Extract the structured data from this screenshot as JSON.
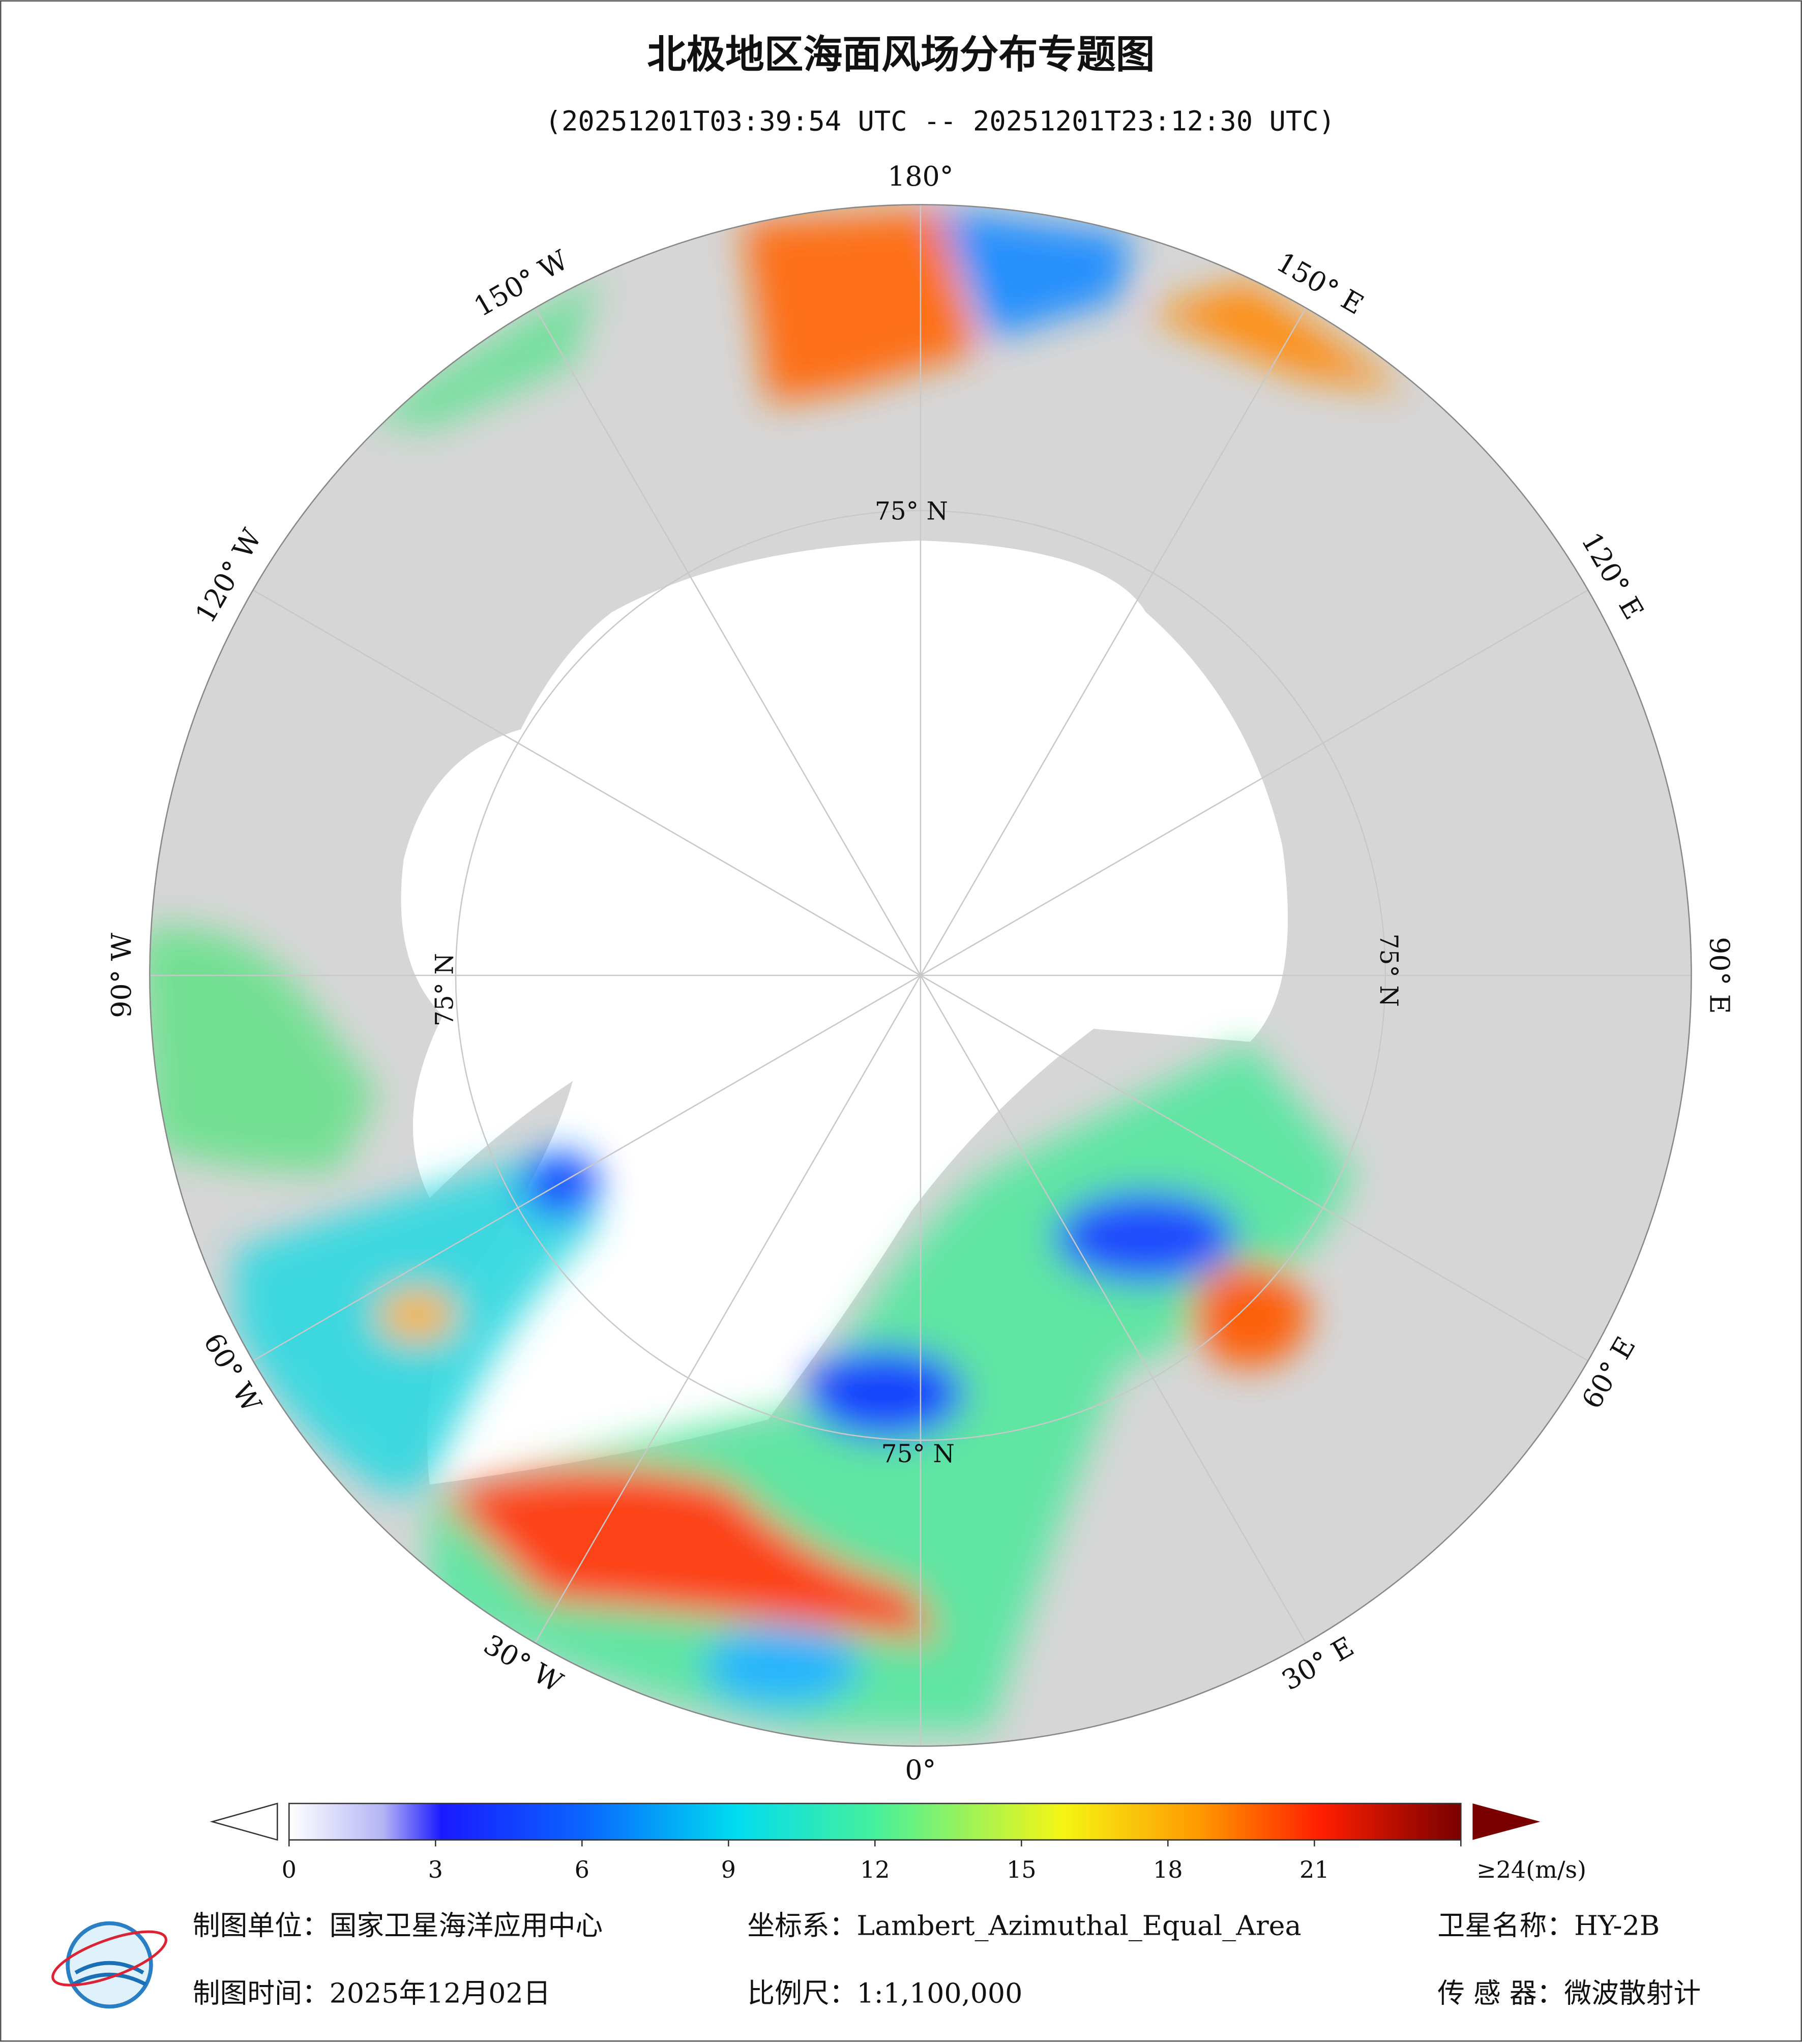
{
  "header": {
    "title": "北极地区海面风场分布专题图",
    "time_range": "(20251201T03:39:54 UTC -- 20251201T23:12:30 UTC)"
  },
  "map": {
    "longitude_labels": [
      "180°",
      "150° E",
      "120° E",
      "90° E",
      "60° E",
      "30° E",
      "0°",
      "30° W",
      "60° W",
      "90° W",
      "120° W",
      "150° W"
    ],
    "latitude_labels": [
      "75° N",
      "75° N",
      "75° N",
      "75° N"
    ]
  },
  "colorbar": {
    "range": [
      0,
      24
    ],
    "ticks": [
      0,
      3,
      6,
      9,
      12,
      15,
      18,
      21,
      {
        "value": 24,
        "label": "≥24(m/s)"
      }
    ]
  },
  "footer": {
    "unit": "制图单位：国家卫星海洋应用中心",
    "crs": "坐标系：Lambert_Azimuthal_Equal_Area",
    "satellite": "卫星名称：HY-2B",
    "date": "制图时间：2025年12月02日",
    "scale": "比例尺：1:1,100,000",
    "sensor": "传 感 器：微波散射计"
  }
}
